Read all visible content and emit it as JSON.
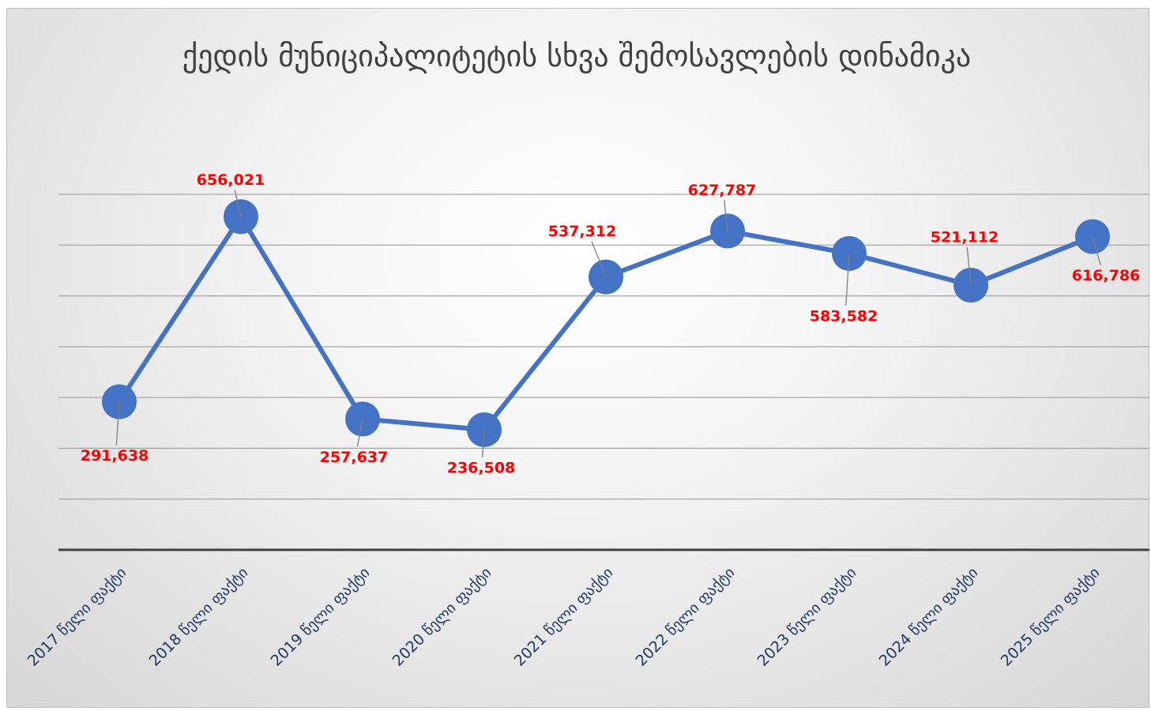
{
  "chart_data": {
    "type": "line",
    "title": "ქედის მუნიციპალიტეტის სხვა შემოსავლების დინამიკა",
    "categories": [
      "2017 წელი ფაქტი",
      "2018 წელი ფაქტი",
      "2019 წელი ფაქტი",
      "2020 წელი ფაქტი",
      "2021 წელი ფაქტი",
      "2022 წელი ფაქტი",
      "2023 წელი ფაქტი",
      "2024 წელი ფაქტი",
      "2025 წელი ფაქტი"
    ],
    "series": [
      {
        "name": "სხვა შემოსავლები",
        "color": "#4472c4",
        "values": [
          291638,
          656021,
          257637,
          236508,
          537312,
          627787,
          583582,
          521112,
          616786
        ],
        "value_labels": [
          "291,638",
          "656,021",
          "257,637",
          "236,508",
          "537,312",
          "627,787",
          "583,582",
          "521,112",
          "616,786"
        ]
      }
    ],
    "ylim": [
      0,
      700000
    ],
    "yticks": [
      0,
      100000,
      200000,
      300000,
      400000,
      500000,
      600000,
      700000
    ],
    "grid": true
  }
}
